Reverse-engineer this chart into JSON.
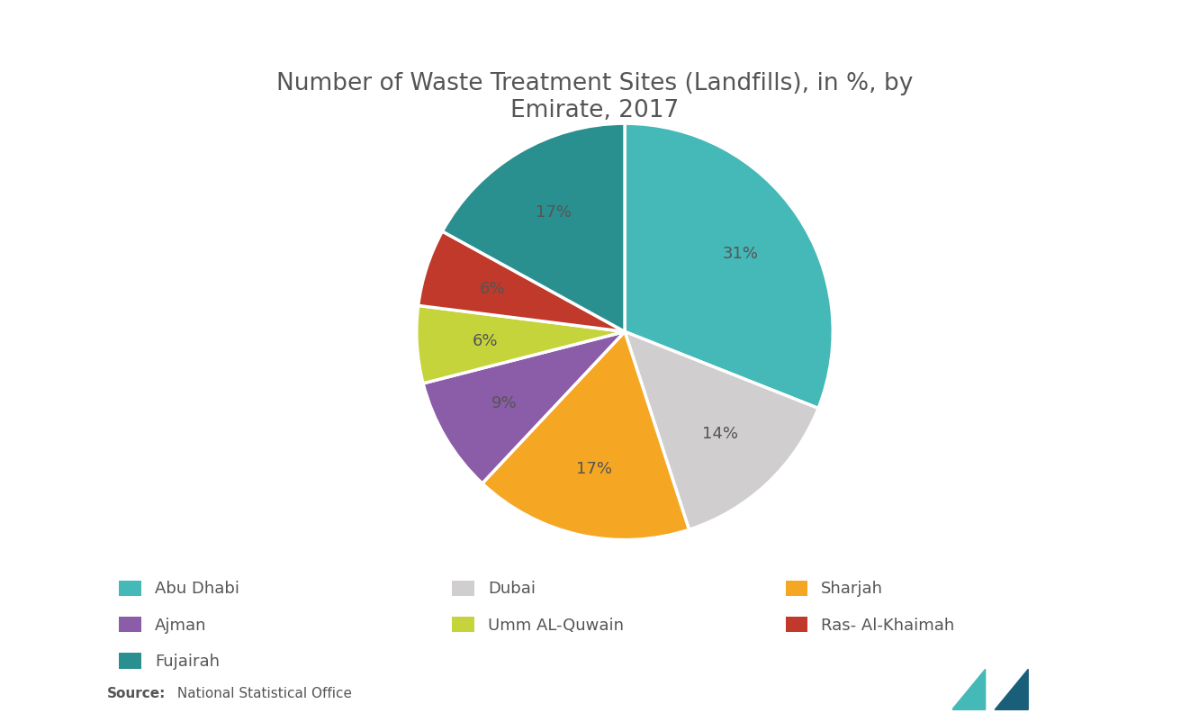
{
  "title": "Number of Waste Treatment Sites (Landfills), in %, by\nEmirate, 2017",
  "title_fontsize": 19,
  "background_color": "#ffffff",
  "text_color": "#555555",
  "label_color": "#555555",
  "slices": [
    {
      "label": "Abu Dhabi",
      "value": 31,
      "color": "#45b8b8"
    },
    {
      "label": "Dubai",
      "value": 14,
      "color": "#d0cece"
    },
    {
      "label": "Sharjah",
      "value": 17,
      "color": "#f5a623"
    },
    {
      "label": "Ajman",
      "value": 9,
      "color": "#8b5ca8"
    },
    {
      "label": "Umm AL-Quwain",
      "value": 6,
      "color": "#c5d43a"
    },
    {
      "label": "Ras- Al-Khaimah",
      "value": 6,
      "color": "#c0392b"
    },
    {
      "label": "Fujairah",
      "value": 17,
      "color": "#2a8f8f"
    }
  ],
  "legend_order": [
    [
      0,
      1,
      2
    ],
    [
      3,
      4,
      5
    ],
    [
      6
    ]
  ],
  "legend_labels_row1": [
    "Abu Dhabi",
    "Dubai",
    "Sharjah"
  ],
  "legend_labels_row2": [
    "Ajman",
    "Umm AL-Quwain",
    "Ras- Al-Khaimah"
  ],
  "legend_labels_row3": [
    "Fujairah"
  ],
  "source_label": "Source:",
  "source_text": " National Statistical Office",
  "label_fontsize": 13,
  "legend_fontsize": 13,
  "logo_color1": "#45b8b8",
  "logo_color2": "#1a5f7a"
}
